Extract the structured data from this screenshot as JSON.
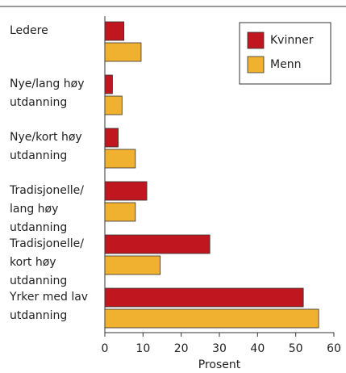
{
  "chart_data": {
    "type": "barh",
    "categories": [
      "Ledere",
      "Nye/lang høy\nutdanning",
      "Nye/kort høy\nutdanning",
      "Tradisjonelle/\nlang høy\nutdanning",
      "Tradisjonelle/\nkort høy\nutdanning",
      "Yrker med lav\nutdanning"
    ],
    "series": [
      {
        "name": "Kvinner",
        "color": "#c0161f",
        "values": [
          5,
          2,
          3.5,
          11,
          27.5,
          52
        ]
      },
      {
        "name": "Menn",
        "color": "#f0b030",
        "values": [
          9.5,
          4.5,
          8,
          8,
          14.5,
          56
        ]
      }
    ],
    "xlabel": "Prosent",
    "xlim": [
      0,
      60
    ],
    "xticks": [
      0,
      10,
      20,
      30,
      40,
      50,
      60
    ],
    "legend": "upper right",
    "grid": false
  }
}
